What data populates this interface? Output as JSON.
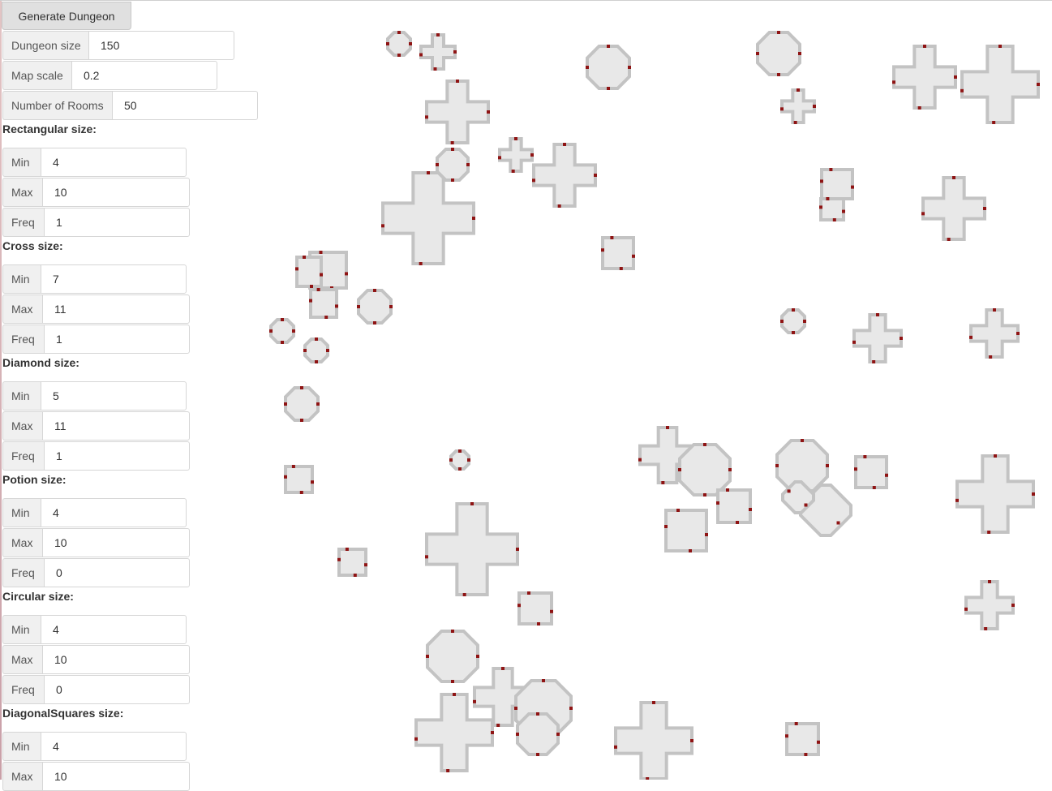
{
  "generate_button": "Generate Dungeon",
  "settings": {
    "dungeon_size": {
      "label": "Dungeon size",
      "value": "150"
    },
    "map_scale": {
      "label": "Map scale",
      "value": "0.2"
    },
    "number_of_rooms": {
      "label": "Number of Rooms",
      "value": "50"
    }
  },
  "room_types": [
    {
      "title": "Rectangular size:",
      "min": {
        "label": "Min",
        "value": "4"
      },
      "max": {
        "label": "Max",
        "value": "10"
      },
      "freq": {
        "label": "Freq",
        "value": "1"
      }
    },
    {
      "title": "Cross size:",
      "min": {
        "label": "Min",
        "value": "7"
      },
      "max": {
        "label": "Max",
        "value": "11"
      },
      "freq": {
        "label": "Freq",
        "value": "1"
      }
    },
    {
      "title": "Diamond size:",
      "min": {
        "label": "Min",
        "value": "5"
      },
      "max": {
        "label": "Max",
        "value": "11"
      },
      "freq": {
        "label": "Freq",
        "value": "1"
      }
    },
    {
      "title": "Potion size:",
      "min": {
        "label": "Min",
        "value": "4"
      },
      "max": {
        "label": "Max",
        "value": "10"
      },
      "freq": {
        "label": "Freq",
        "value": "0"
      }
    },
    {
      "title": "Circular size:",
      "min": {
        "label": "Min",
        "value": "4"
      },
      "max": {
        "label": "Max",
        "value": "10"
      },
      "freq": {
        "label": "Freq",
        "value": "0"
      }
    },
    {
      "title": "DiagonalSquares size:",
      "min": {
        "label": "Min",
        "value": "4"
      },
      "max": {
        "label": "Max",
        "value": "10"
      }
    }
  ],
  "colors": {
    "room_fill": "#e8e8e8",
    "room_wall": "#c3c3c3",
    "door": "#8f1414"
  }
}
